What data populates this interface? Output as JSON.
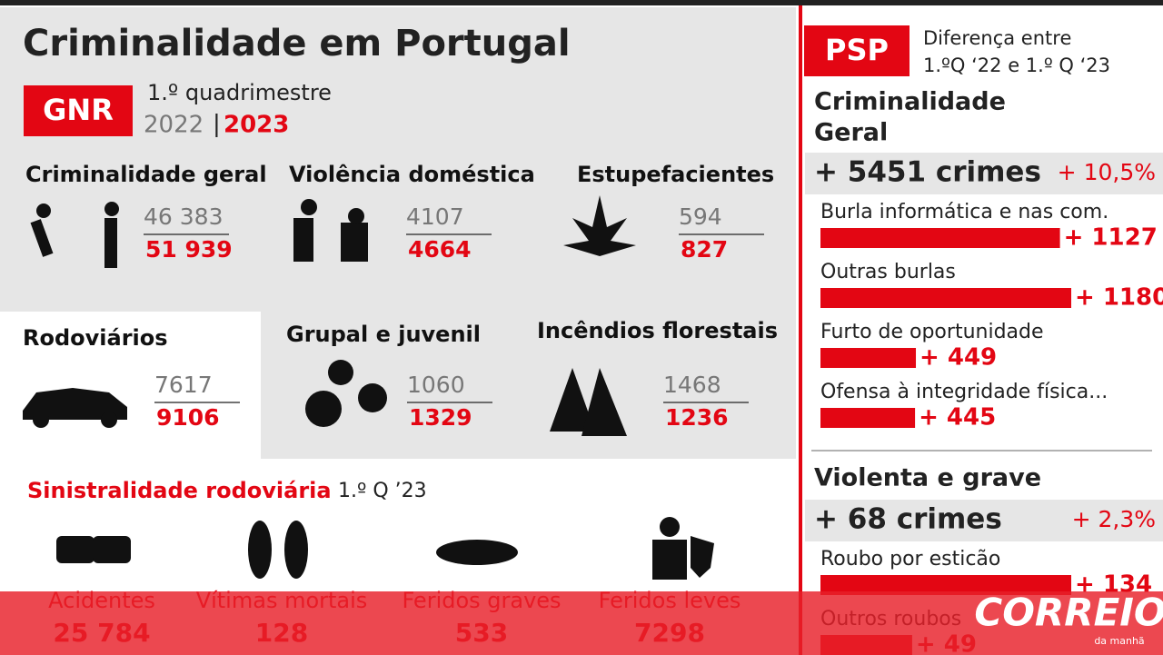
{
  "header": {
    "title": "Criminalidade em Portugal"
  },
  "gnr": {
    "badge": "GNR",
    "period": "1.º quadrimestre",
    "year_prev": "2022",
    "separator": "|",
    "year_curr": "2023",
    "items": [
      {
        "label": "Criminalidade geral",
        "prev": "46 383",
        "curr": "51 939"
      },
      {
        "label": "Violência doméstica",
        "prev": "4107",
        "curr": "4664"
      },
      {
        "label": "Estupefacientes",
        "prev": "594",
        "curr": "827"
      },
      {
        "label": "Rodoviários",
        "prev": "7617",
        "curr": "9106"
      },
      {
        "label": "Grupal e  juvenil",
        "prev": "1060",
        "curr": "1329"
      },
      {
        "label": "Incêndios florestais",
        "prev": "1468",
        "curr": "1236"
      }
    ]
  },
  "road": {
    "title": "Sinistralidade rodoviária",
    "period": "1.º Q ’23",
    "items": [
      {
        "label": "Acidentes",
        "value": "25 784"
      },
      {
        "label": "Vítimas mortais",
        "value": "128"
      },
      {
        "label": "Feridos graves",
        "value": "533"
      },
      {
        "label": "Feridos leves",
        "value": "7298"
      }
    ]
  },
  "psp": {
    "badge": "PSP",
    "note_line1": "Diferença entre",
    "note_line2": "1.ºQ ‘22 e 1.º Q ‘23",
    "sections": [
      {
        "title_line1": "Criminalidade",
        "title_line2": "Geral",
        "total": "+ 5451 crimes",
        "pct": "+ 10,5%",
        "items": [
          {
            "label": "Burla informática e nas com.",
            "change": 1127,
            "change_label": "+ 1127"
          },
          {
            "label": "Outras burlas",
            "change": 1180,
            "change_label": "+ 1180"
          },
          {
            "label": "Furto de oportunidade",
            "change": 449,
            "change_label": "+ 449"
          },
          {
            "label": "Ofensa à  integridade física...",
            "change": 445,
            "change_label": "+ 445"
          }
        ]
      },
      {
        "title_line1": "Violenta e grave",
        "total": "+ 68 crimes",
        "pct": "+ 2,3%",
        "items": [
          {
            "label": "Roubo por esticão",
            "change": 134,
            "change_label": "+ 134"
          },
          {
            "label": "Outros roubos",
            "change": 49,
            "change_label": "+ 49"
          }
        ]
      }
    ]
  },
  "logo": {
    "name": "CORREIO",
    "sub": "da manhã"
  }
}
